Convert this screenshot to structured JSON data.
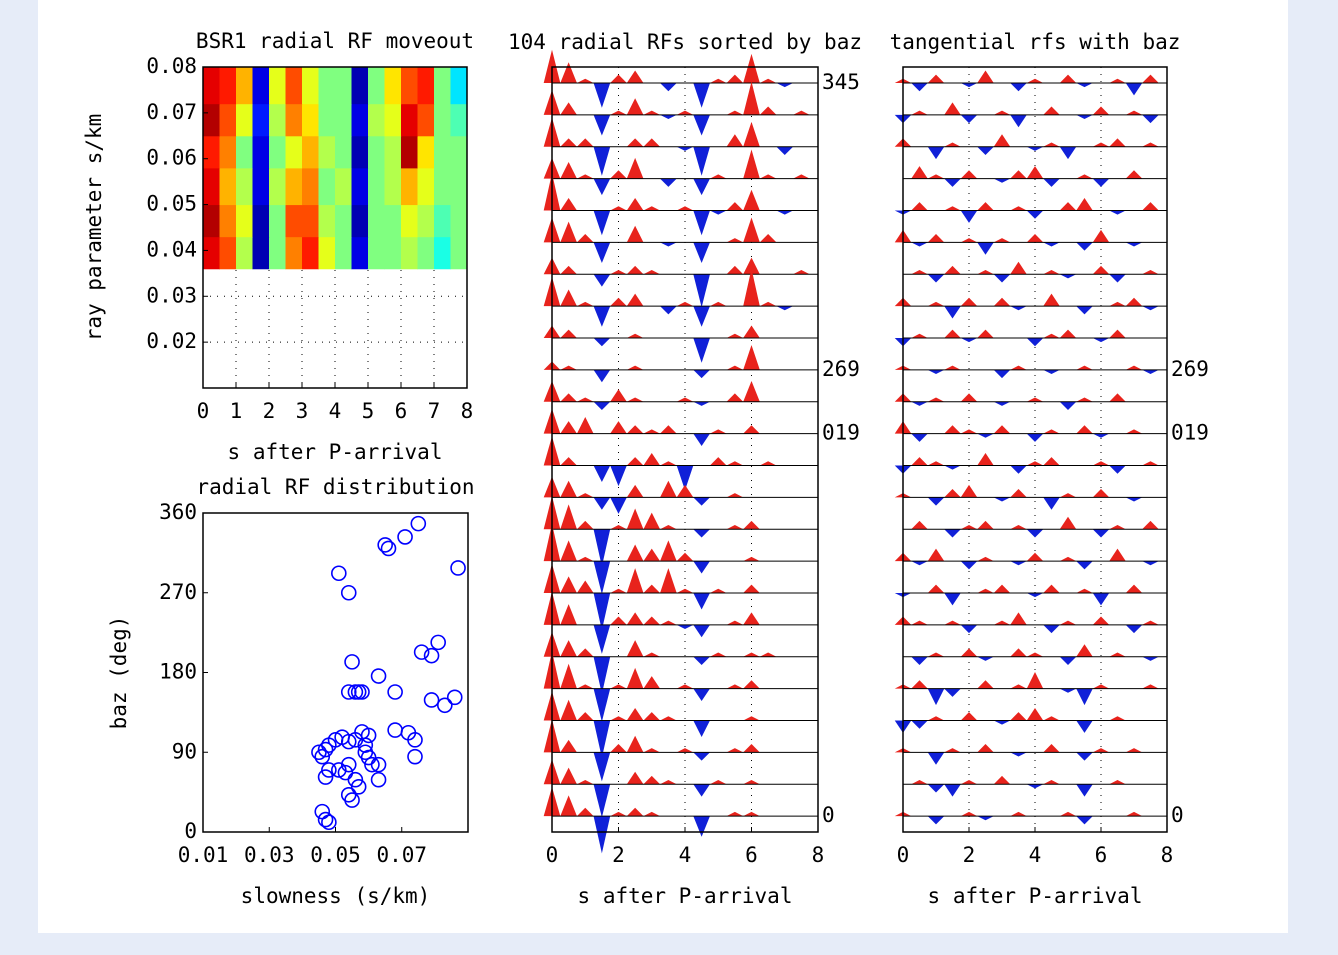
{
  "chart_data": [
    {
      "type": "heatmap",
      "title": "BSR1 radial RF moveout",
      "xlabel": "s after P-arrival",
      "ylabel": "ray parameter s/km",
      "xlim": [
        0,
        8
      ],
      "ylim": [
        0.01,
        0.08
      ],
      "xticks": [
        0,
        1,
        2,
        3,
        4,
        5,
        6,
        7,
        8
      ],
      "yticks": [
        0.02,
        0.03,
        0.04,
        0.05,
        0.06,
        0.07,
        0.08
      ],
      "grid": true,
      "colormap": "jet",
      "clim": [
        -1,
        1
      ],
      "xbins": [
        0,
        0.5,
        1,
        1.5,
        2,
        2.5,
        3,
        3.5,
        4,
        4.5,
        5,
        5.5,
        6,
        6.5,
        7,
        7.5,
        8
      ],
      "ybins": [
        0.036,
        0.043,
        0.05,
        0.058,
        0.065,
        0.072,
        0.08
      ],
      "values": [
        [
          0.8,
          0.6,
          0.1,
          -0.9,
          0,
          0.5,
          0.7,
          0.2,
          0,
          -0.8,
          0,
          0,
          0.1,
          0,
          -0.2,
          0
        ],
        [
          0.9,
          0.5,
          0.2,
          -0.9,
          0,
          0.6,
          0.6,
          0.1,
          0,
          -0.9,
          0,
          0,
          0.2,
          0.1,
          -0.1,
          0
        ],
        [
          0.8,
          0.4,
          0.1,
          -0.8,
          0.1,
          0.4,
          0.5,
          0,
          0.1,
          -0.8,
          0,
          0.1,
          0.4,
          0.2,
          0,
          0
        ],
        [
          0.7,
          0.5,
          0,
          -0.8,
          0,
          0.2,
          0.4,
          0.1,
          0,
          -0.9,
          0,
          0.1,
          0.9,
          0.3,
          0,
          0
        ],
        [
          0.9,
          0.6,
          0.2,
          -0.7,
          0.1,
          0.5,
          0.3,
          0,
          0,
          -0.8,
          0.1,
          0.2,
          0.8,
          0.6,
          0,
          -0.1
        ],
        [
          0.8,
          0.7,
          0.4,
          -0.8,
          0.2,
          0.6,
          0.2,
          0,
          0,
          -0.9,
          0,
          0.3,
          0.6,
          0.7,
          0,
          -0.3
        ]
      ]
    },
    {
      "type": "scatter",
      "title": "radial RF distribution",
      "xlabel": "slowness (s/km)",
      "ylabel": "baz (deg)",
      "xlim": [
        0.01,
        0.09
      ],
      "ylim": [
        0,
        360
      ],
      "xticks": [
        0.01,
        0.03,
        0.05,
        0.07
      ],
      "yticks": [
        0,
        90,
        180,
        270,
        360
      ],
      "color": "#0000ff",
      "marker": "open-circle",
      "x": [
        0.075,
        0.071,
        0.065,
        0.066,
        0.051,
        0.054,
        0.087,
        0.055,
        0.063,
        0.054,
        0.056,
        0.057,
        0.058,
        0.068,
        0.076,
        0.079,
        0.081,
        0.079,
        0.083,
        0.086,
        0.068,
        0.072,
        0.074,
        0.074,
        0.045,
        0.046,
        0.047,
        0.048,
        0.05,
        0.052,
        0.054,
        0.056,
        0.058,
        0.06,
        0.059,
        0.061,
        0.063,
        0.063,
        0.054,
        0.053,
        0.056,
        0.057,
        0.054,
        0.055,
        0.048,
        0.047,
        0.051,
        0.046,
        0.047,
        0.048,
        0.059,
        0.06
      ],
      "y": [
        348,
        333,
        324,
        320,
        292,
        270,
        298,
        192,
        176,
        158,
        158,
        158,
        158,
        158,
        203,
        199,
        214,
        149,
        143,
        152,
        115,
        112,
        104,
        85,
        90,
        85,
        93,
        98,
        104,
        107,
        102,
        104,
        113,
        109,
        90,
        76,
        76,
        59,
        76,
        67,
        59,
        51,
        42,
        36,
        70,
        62,
        70,
        23,
        14,
        11,
        98,
        84
      ]
    },
    {
      "type": "wiggle",
      "title": "104 radial RFs sorted by baz",
      "xlabel": "s after P-arrival",
      "xlim": [
        0,
        8
      ],
      "xticks": [
        0,
        2,
        4,
        6,
        8
      ],
      "grid": true,
      "positive_color": "#e8231c",
      "negative_color": "#1020d8",
      "x": [
        0,
        0.5,
        1,
        1.5,
        2,
        2.5,
        3,
        3.5,
        4,
        4.5,
        5,
        5.5,
        6,
        6.5,
        7,
        7.5,
        8
      ],
      "trace_labels": [
        "345",
        null,
        null,
        null,
        null,
        null,
        null,
        null,
        null,
        "269",
        null,
        "019",
        null,
        null,
        null,
        null,
        null,
        null,
        null,
        null,
        null,
        null,
        null,
        "0"
      ],
      "traces": [
        [
          0.8,
          0.5,
          0.1,
          -0.6,
          0.2,
          0.3,
          0,
          -0.2,
          0,
          -0.6,
          0.1,
          0.2,
          0.7,
          0.1,
          -0.1,
          0,
          0
        ],
        [
          0.6,
          0.3,
          0,
          -0.5,
          0.1,
          0.4,
          0.1,
          -0.1,
          0.1,
          -0.5,
          0,
          0.1,
          0.8,
          0.2,
          0,
          0.1,
          0
        ],
        [
          0.7,
          0.2,
          0.2,
          -0.7,
          0,
          0.2,
          0.2,
          0,
          -0.1,
          -0.7,
          0,
          0.3,
          0.6,
          0,
          -0.2,
          0,
          0
        ],
        [
          0.5,
          0.4,
          0.1,
          -0.4,
          0.2,
          0.5,
          0,
          -0.2,
          0,
          -0.4,
          0.1,
          0,
          0.7,
          0.1,
          0,
          0.1,
          0
        ],
        [
          0.9,
          0.3,
          0,
          -0.6,
          0.1,
          0.3,
          0.1,
          0,
          0.1,
          -0.6,
          -0.1,
          0.2,
          0.5,
          0,
          -0.1,
          0,
          0
        ],
        [
          0.6,
          0.5,
          0.2,
          -0.5,
          0,
          0.4,
          0,
          -0.1,
          0,
          -0.5,
          0,
          0.1,
          0.6,
          0.2,
          0,
          0,
          0
        ],
        [
          0.4,
          0.2,
          0,
          -0.3,
          0.1,
          0.2,
          0.1,
          0,
          0,
          -0.8,
          0,
          0.2,
          0.4,
          0,
          0,
          0.1,
          0
        ],
        [
          0.7,
          0.4,
          0.1,
          -0.5,
          0.2,
          0.3,
          0,
          -0.2,
          0.1,
          -0.5,
          0.1,
          0,
          0.9,
          0.1,
          -0.1,
          0,
          0
        ],
        [
          0.3,
          0.2,
          0,
          -0.2,
          0,
          0.1,
          0,
          0,
          0,
          -0.6,
          0,
          0.1,
          0.3,
          0,
          0,
          0,
          0
        ],
        [
          0.2,
          0.1,
          0,
          -0.3,
          0,
          0.1,
          0,
          0,
          0,
          -0.2,
          0,
          0.1,
          0.6,
          0,
          0,
          0,
          0
        ],
        [
          0.5,
          0.2,
          0.1,
          -0.2,
          0.3,
          0.1,
          0,
          0,
          0.1,
          -0.1,
          0,
          0.2,
          0.5,
          0,
          0,
          0,
          0
        ],
        [
          0.6,
          0.3,
          0.4,
          0,
          0.3,
          0.2,
          0.1,
          0.2,
          0,
          -0.3,
          0.1,
          0,
          0.2,
          0,
          0,
          0,
          0
        ],
        [
          0.7,
          0.2,
          0,
          -0.4,
          -0.5,
          0.2,
          0.3,
          0.1,
          -0.6,
          0,
          0.2,
          0.1,
          0,
          0.1,
          0,
          0,
          0
        ],
        [
          0.5,
          0.4,
          0.1,
          -0.3,
          -0.4,
          0.3,
          0,
          0.4,
          0.3,
          -0.2,
          0,
          0.1,
          0,
          0,
          0,
          0,
          0
        ],
        [
          0.8,
          0.6,
          0.2,
          -0.9,
          0.1,
          0.5,
          0.4,
          0.1,
          0,
          -0.2,
          0,
          0.1,
          0.2,
          0,
          0,
          0,
          0
        ],
        [
          0.9,
          0.5,
          0.1,
          -0.8,
          0,
          0.4,
          0.3,
          0.5,
          0.2,
          -0.3,
          0,
          0,
          0.1,
          0,
          0,
          0,
          0
        ],
        [
          0.7,
          0.4,
          0.3,
          -0.9,
          0.1,
          0.6,
          0.2,
          0.6,
          0.1,
          -0.4,
          0.1,
          0,
          0.2,
          0,
          0,
          0,
          0
        ],
        [
          0.8,
          0.5,
          0,
          -0.7,
          0.2,
          0.3,
          0.2,
          0.1,
          -0.1,
          -0.3,
          0,
          0.1,
          0.3,
          0,
          0,
          0,
          0
        ],
        [
          0.6,
          0.4,
          0.2,
          -0.9,
          0,
          0.4,
          0.1,
          0,
          0,
          -0.2,
          0.1,
          0,
          0.1,
          0.1,
          0,
          0,
          0
        ],
        [
          0.9,
          0.6,
          0.1,
          -0.8,
          0.1,
          0.5,
          0.3,
          0,
          0.1,
          -0.3,
          0,
          0.1,
          0.2,
          0,
          0,
          0,
          0
        ],
        [
          0.7,
          0.5,
          0.2,
          -0.9,
          0.1,
          0.3,
          0.2,
          0.1,
          0,
          -0.4,
          0,
          0,
          0.1,
          0,
          0,
          0,
          0
        ],
        [
          0.8,
          0.3,
          0,
          -0.7,
          0.2,
          0.4,
          0.1,
          0,
          0.1,
          -0.2,
          0,
          0.1,
          0.2,
          0,
          0,
          0,
          0
        ],
        [
          0.6,
          0.4,
          0.1,
          -0.8,
          0,
          0.3,
          0.2,
          0.1,
          0,
          -0.3,
          0.1,
          0,
          0.1,
          0,
          0,
          0,
          0
        ],
        [
          0.7,
          0.5,
          0.2,
          -0.9,
          0.1,
          0.2,
          0.1,
          0,
          0,
          -0.5,
          0,
          0.1,
          0.1,
          0,
          0,
          0,
          0
        ]
      ]
    },
    {
      "type": "wiggle",
      "title": "tangential rfs with baz",
      "xlabel": "s after P-arrival",
      "xlim": [
        0,
        8
      ],
      "xticks": [
        0,
        2,
        4,
        6,
        8
      ],
      "grid": true,
      "positive_color": "#e8231c",
      "negative_color": "#1020d8",
      "x": [
        0,
        0.5,
        1,
        1.5,
        2,
        2.5,
        3,
        3.5,
        4,
        4.5,
        5,
        5.5,
        6,
        6.5,
        7,
        7.5,
        8
      ],
      "trace_labels": [
        null,
        null,
        null,
        null,
        null,
        null,
        null,
        null,
        null,
        "269",
        null,
        "019",
        null,
        null,
        null,
        null,
        null,
        null,
        null,
        null,
        null,
        null,
        null,
        "0"
      ],
      "traces": [
        [
          0.1,
          -0.2,
          0.2,
          0,
          -0.1,
          0.3,
          0,
          -0.2,
          0.1,
          0,
          0.2,
          -0.1,
          0,
          0.1,
          -0.3,
          0.2,
          0
        ],
        [
          -0.2,
          0.1,
          0,
          0.3,
          -0.2,
          0,
          0.1,
          -0.3,
          0,
          0.2,
          0,
          -0.1,
          0.2,
          0,
          0.1,
          -0.2,
          0
        ],
        [
          0.2,
          0,
          -0.3,
          0.1,
          0,
          -0.2,
          0.3,
          0,
          -0.1,
          0.1,
          -0.3,
          0,
          0.1,
          0.2,
          0,
          0.1,
          0
        ],
        [
          0,
          0.3,
          0.1,
          -0.2,
          0.2,
          0,
          -0.1,
          0.2,
          0.3,
          -0.2,
          0,
          0.1,
          -0.2,
          0,
          0.2,
          0,
          0
        ],
        [
          -0.1,
          0.2,
          0,
          0.1,
          -0.3,
          0.2,
          0,
          0.1,
          -0.2,
          0,
          0.2,
          0.3,
          0,
          -0.1,
          0,
          0.2,
          0
        ],
        [
          0.3,
          -0.1,
          0.2,
          0,
          0.1,
          -0.3,
          0.1,
          0,
          0.2,
          -0.1,
          0,
          -0.2,
          0.3,
          0,
          -0.1,
          0,
          0
        ],
        [
          0,
          0.1,
          -0.2,
          0.2,
          0,
          0.1,
          -0.2,
          0.3,
          0,
          0.1,
          -0.1,
          0,
          0.2,
          -0.2,
          0,
          0.1,
          0
        ],
        [
          0.2,
          0,
          0.1,
          -0.3,
          0.2,
          0,
          0.2,
          -0.1,
          0,
          0.3,
          0,
          -0.2,
          0,
          0.1,
          0.2,
          -0.1,
          0
        ],
        [
          -0.2,
          0.1,
          0,
          0.2,
          -0.1,
          0.2,
          0,
          0,
          -0.2,
          0.1,
          0.2,
          0,
          -0.1,
          0.2,
          0,
          0,
          0
        ],
        [
          0.1,
          0,
          -0.1,
          0.1,
          0,
          0,
          -0.2,
          0.1,
          0,
          -0.1,
          0,
          0.1,
          0,
          0,
          0.1,
          -0.1,
          0
        ],
        [
          0.2,
          -0.1,
          0.1,
          0,
          0.2,
          0,
          -0.1,
          0,
          0.1,
          0,
          -0.2,
          0.1,
          0,
          0.2,
          0,
          0,
          0
        ],
        [
          0.3,
          -0.2,
          0,
          0.2,
          0.1,
          -0.1,
          0.2,
          0,
          -0.2,
          0.1,
          0,
          0.2,
          -0.1,
          0,
          0.1,
          0,
          0
        ],
        [
          -0.2,
          0.2,
          0.1,
          -0.1,
          0,
          0.3,
          0,
          -0.2,
          0.1,
          0.2,
          0,
          0,
          0.1,
          -0.2,
          0,
          0.1,
          0
        ],
        [
          0.1,
          0,
          -0.2,
          0.2,
          0.3,
          0,
          -0.1,
          0.2,
          0,
          -0.3,
          0.1,
          0,
          0.2,
          0,
          -0.1,
          0,
          0
        ],
        [
          0,
          0.2,
          0,
          -0.2,
          0.1,
          0.2,
          0,
          0.1,
          -0.2,
          0,
          0.3,
          0,
          -0.2,
          0.1,
          0,
          0.2,
          0
        ],
        [
          0.2,
          -0.1,
          0.3,
          0,
          -0.2,
          0.1,
          0,
          -0.1,
          0.2,
          0,
          0.1,
          -0.2,
          0,
          0.3,
          0,
          -0.1,
          0
        ],
        [
          -0.1,
          0,
          0.2,
          -0.3,
          0,
          0.1,
          0.2,
          0,
          -0.1,
          0.2,
          0,
          0.1,
          -0.3,
          0,
          0.2,
          0,
          0
        ],
        [
          0.2,
          0.1,
          0,
          0.1,
          -0.2,
          0,
          0.1,
          0.3,
          0,
          -0.2,
          0.1,
          0,
          0.2,
          0,
          -0.2,
          0.1,
          0
        ],
        [
          0,
          -0.2,
          0.1,
          0,
          0.2,
          -0.1,
          0,
          0.2,
          0.1,
          0,
          -0.2,
          0.3,
          0,
          0.1,
          0,
          -0.1,
          0
        ],
        [
          0.1,
          0.2,
          -0.4,
          -0.2,
          0,
          0.2,
          0,
          0.1,
          0.4,
          0,
          -0.1,
          -0.4,
          0.1,
          0,
          0,
          0.1,
          0
        ],
        [
          -0.3,
          -0.2,
          0.1,
          0,
          0.2,
          0,
          -0.1,
          0.2,
          0.3,
          0.1,
          0,
          -0.3,
          0,
          0.1,
          0,
          0,
          0
        ],
        [
          0.1,
          0,
          -0.3,
          0.1,
          0,
          0.2,
          0,
          -0.1,
          0,
          0.2,
          0,
          -0.2,
          0.1,
          0,
          0.1,
          0,
          0
        ],
        [
          0,
          0.1,
          -0.2,
          -0.3,
          0.1,
          0,
          0.2,
          0,
          -0.1,
          0.1,
          0,
          -0.3,
          0,
          0.1,
          0,
          0,
          0
        ],
        [
          0.1,
          0,
          -0.2,
          0,
          0.1,
          -0.1,
          0,
          0.1,
          0,
          0,
          0.1,
          -0.2,
          0,
          0,
          0.1,
          0,
          0
        ]
      ]
    }
  ]
}
